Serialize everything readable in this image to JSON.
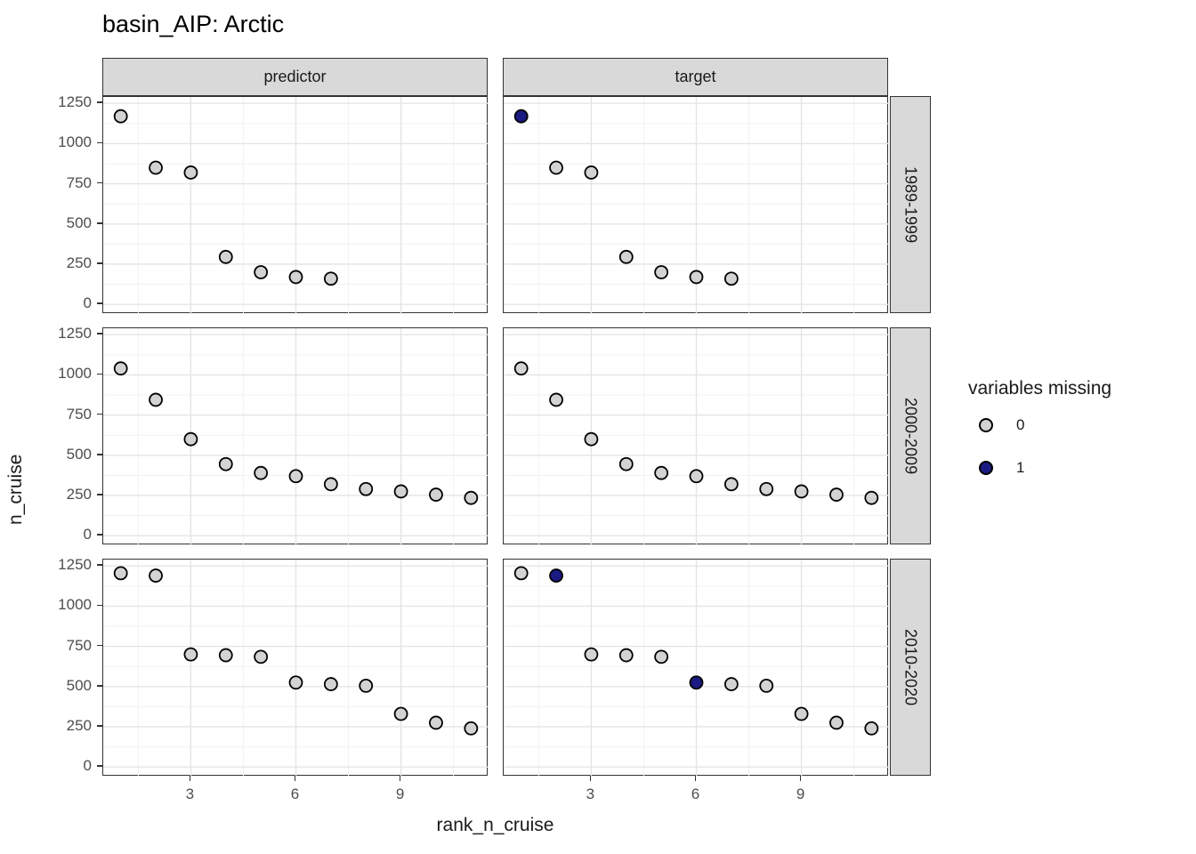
{
  "title": "basin_AIP: Arctic",
  "legend": {
    "title": "variables missing",
    "items": [
      {
        "label": "0",
        "fill": "#d3d3d3"
      },
      {
        "label": "1",
        "fill": "#1a1a82"
      }
    ]
  },
  "colors": {
    "point_fill_missing0": "#d3d3d3",
    "point_fill_missing1": "#1a1a82",
    "point_stroke": "#000000",
    "strip_fill": "#d9d9d9",
    "panel_border": "#333333",
    "grid_major": "#e4e4e4",
    "grid_minor": "#f1f1f1",
    "axis_text": "#4d4d4d"
  },
  "chart_data": {
    "type": "scatter",
    "title": "basin_AIP: Arctic",
    "xlabel": "rank_n_cruise",
    "ylabel": "n_cruise",
    "facet_cols": [
      "predictor",
      "target"
    ],
    "facet_rows": [
      "1989-1999",
      "2000-2009",
      "2010-2020"
    ],
    "legend_title": "variables missing",
    "legend_levels": [
      "0",
      "1"
    ],
    "x_ticks": [
      3,
      6,
      9
    ],
    "y_ticks": [
      0,
      250,
      500,
      750,
      1000,
      1250
    ],
    "x_minor": [
      1.5,
      4.5,
      7.5,
      10.5
    ],
    "y_minor": [
      125,
      375,
      625,
      875,
      1125
    ],
    "xlim": [
      0.5,
      11.5
    ],
    "ylim": [
      -60,
      1290
    ],
    "grid": "major+minor",
    "legend_position": "right",
    "panels": [
      {
        "facet_col": "predictor",
        "facet_row": "1989-1999",
        "points": [
          {
            "x": 1,
            "y": 1170,
            "missing": 0
          },
          {
            "x": 2,
            "y": 850,
            "missing": 0
          },
          {
            "x": 3,
            "y": 820,
            "missing": 0
          },
          {
            "x": 4,
            "y": 295,
            "missing": 0
          },
          {
            "x": 5,
            "y": 200,
            "missing": 0
          },
          {
            "x": 6,
            "y": 170,
            "missing": 0
          },
          {
            "x": 7,
            "y": 160,
            "missing": 0
          }
        ]
      },
      {
        "facet_col": "target",
        "facet_row": "1989-1999",
        "points": [
          {
            "x": 1,
            "y": 1170,
            "missing": 1
          },
          {
            "x": 2,
            "y": 850,
            "missing": 0
          },
          {
            "x": 3,
            "y": 820,
            "missing": 0
          },
          {
            "x": 4,
            "y": 295,
            "missing": 0
          },
          {
            "x": 5,
            "y": 200,
            "missing": 0
          },
          {
            "x": 6,
            "y": 170,
            "missing": 0
          },
          {
            "x": 7,
            "y": 160,
            "missing": 0
          }
        ]
      },
      {
        "facet_col": "predictor",
        "facet_row": "2000-2009",
        "points": [
          {
            "x": 1,
            "y": 1040,
            "missing": 0
          },
          {
            "x": 2,
            "y": 845,
            "missing": 0
          },
          {
            "x": 3,
            "y": 600,
            "missing": 0
          },
          {
            "x": 4,
            "y": 445,
            "missing": 0
          },
          {
            "x": 5,
            "y": 390,
            "missing": 0
          },
          {
            "x": 6,
            "y": 370,
            "missing": 0
          },
          {
            "x": 7,
            "y": 320,
            "missing": 0
          },
          {
            "x": 8,
            "y": 290,
            "missing": 0
          },
          {
            "x": 9,
            "y": 275,
            "missing": 0
          },
          {
            "x": 10,
            "y": 255,
            "missing": 0
          },
          {
            "x": 11,
            "y": 235,
            "missing": 0
          }
        ]
      },
      {
        "facet_col": "target",
        "facet_row": "2000-2009",
        "points": [
          {
            "x": 1,
            "y": 1040,
            "missing": 0
          },
          {
            "x": 2,
            "y": 845,
            "missing": 0
          },
          {
            "x": 3,
            "y": 600,
            "missing": 0
          },
          {
            "x": 4,
            "y": 445,
            "missing": 0
          },
          {
            "x": 5,
            "y": 390,
            "missing": 0
          },
          {
            "x": 6,
            "y": 370,
            "missing": 0
          },
          {
            "x": 7,
            "y": 320,
            "missing": 0
          },
          {
            "x": 8,
            "y": 290,
            "missing": 0
          },
          {
            "x": 9,
            "y": 275,
            "missing": 0
          },
          {
            "x": 10,
            "y": 255,
            "missing": 0
          },
          {
            "x": 11,
            "y": 235,
            "missing": 0
          }
        ]
      },
      {
        "facet_col": "predictor",
        "facet_row": "2010-2020",
        "points": [
          {
            "x": 1,
            "y": 1205,
            "missing": 0
          },
          {
            "x": 2,
            "y": 1190,
            "missing": 0
          },
          {
            "x": 3,
            "y": 700,
            "missing": 0
          },
          {
            "x": 4,
            "y": 695,
            "missing": 0
          },
          {
            "x": 5,
            "y": 685,
            "missing": 0
          },
          {
            "x": 6,
            "y": 525,
            "missing": 0
          },
          {
            "x": 7,
            "y": 515,
            "missing": 0
          },
          {
            "x": 8,
            "y": 505,
            "missing": 0
          },
          {
            "x": 9,
            "y": 330,
            "missing": 0
          },
          {
            "x": 10,
            "y": 275,
            "missing": 0
          },
          {
            "x": 11,
            "y": 240,
            "missing": 0
          }
        ]
      },
      {
        "facet_col": "target",
        "facet_row": "2010-2020",
        "points": [
          {
            "x": 1,
            "y": 1205,
            "missing": 0
          },
          {
            "x": 2,
            "y": 1190,
            "missing": 1
          },
          {
            "x": 3,
            "y": 700,
            "missing": 0
          },
          {
            "x": 4,
            "y": 695,
            "missing": 0
          },
          {
            "x": 5,
            "y": 685,
            "missing": 0
          },
          {
            "x": 6,
            "y": 525,
            "missing": 1
          },
          {
            "x": 7,
            "y": 515,
            "missing": 0
          },
          {
            "x": 8,
            "y": 505,
            "missing": 0
          },
          {
            "x": 9,
            "y": 330,
            "missing": 0
          },
          {
            "x": 10,
            "y": 275,
            "missing": 0
          },
          {
            "x": 11,
            "y": 240,
            "missing": 0
          }
        ]
      }
    ]
  }
}
